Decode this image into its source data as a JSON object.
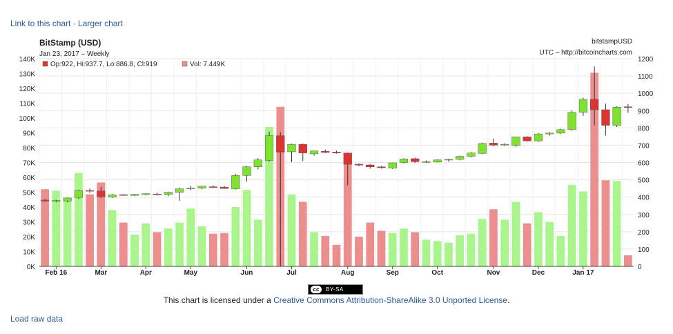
{
  "links": {
    "link_to_chart": "Link to this chart",
    "separator": " · ",
    "larger_chart": "Larger chart",
    "load_raw": "Load raw data"
  },
  "header": {
    "title": "BitStamp (USD)",
    "subtitle": "Jan 23, 2017 – Weekly",
    "symbol": "bitstampUSD",
    "source": "UTC – http://bitcoincharts.com"
  },
  "legend": {
    "ohlc": "Op:922, Hi:937.7, Lo:886.8, Cl:919",
    "vol": "Vol: 7.449K"
  },
  "license": {
    "prefix": "This chart is licensed under a ",
    "link": "Creative Commons Attribution-ShareAlike 3.0 Unported License",
    "suffix": "."
  },
  "badge": {
    "cc": "cc",
    "text": "BY-SA"
  },
  "chart_data": {
    "type": "candlestick",
    "colors": {
      "up_candle": "#7ee32f",
      "down_candle": "#dd3333",
      "up_volume": "#a9f58c",
      "down_volume": "#ec8e8e"
    },
    "price_axis": {
      "side": "right",
      "range": [
        0,
        1200
      ],
      "ticks": [
        0,
        100,
        200,
        300,
        400,
        500,
        600,
        700,
        800,
        900,
        1000,
        1100,
        1200
      ]
    },
    "volume_axis": {
      "side": "left",
      "range": [
        0,
        140000
      ],
      "ticks": [
        "0K",
        "10K",
        "20K",
        "30K",
        "40K",
        "50K",
        "60K",
        "70K",
        "80K",
        "90K",
        "100K",
        "110K",
        "120K",
        "130K",
        "140K"
      ]
    },
    "x_labels": [
      {
        "label": "Feb 16",
        "index": 1
      },
      {
        "label": "Mar",
        "index": 5
      },
      {
        "label": "Apr",
        "index": 9
      },
      {
        "label": "May",
        "index": 13
      },
      {
        "label": "Jun",
        "index": 18
      },
      {
        "label": "Jul",
        "index": 22
      },
      {
        "label": "Aug",
        "index": 27
      },
      {
        "label": "Sep",
        "index": 31
      },
      {
        "label": "Oct",
        "index": 35
      },
      {
        "label": "Nov",
        "index": 40
      },
      {
        "label": "Dec",
        "index": 44
      },
      {
        "label": "Jan 17",
        "index": 48
      }
    ],
    "candles": [
      {
        "o": 383,
        "h": 390,
        "l": 372,
        "c": 378,
        "v": 52000
      },
      {
        "o": 378,
        "h": 385,
        "l": 370,
        "c": 380,
        "v": 51000
      },
      {
        "o": 378,
        "h": 398,
        "l": 370,
        "c": 395,
        "v": 45000
      },
      {
        "o": 398,
        "h": 443,
        "l": 390,
        "c": 438,
        "v": 63000
      },
      {
        "o": 438,
        "h": 450,
        "l": 425,
        "c": 435,
        "v": 48500
      },
      {
        "o": 435,
        "h": 458,
        "l": 395,
        "c": 402,
        "v": 56500
      },
      {
        "o": 400,
        "h": 418,
        "l": 396,
        "c": 414,
        "v": 38000
      },
      {
        "o": 414,
        "h": 418,
        "l": 408,
        "c": 412,
        "v": 29500
      },
      {
        "o": 410,
        "h": 418,
        "l": 406,
        "c": 416,
        "v": 21500
      },
      {
        "o": 415,
        "h": 422,
        "l": 410,
        "c": 420,
        "v": 29000
      },
      {
        "o": 418,
        "h": 426,
        "l": 410,
        "c": 415,
        "v": 23000
      },
      {
        "o": 416,
        "h": 432,
        "l": 405,
        "c": 428,
        "v": 25500
      },
      {
        "o": 428,
        "h": 455,
        "l": 378,
        "c": 448,
        "v": 29500
      },
      {
        "o": 448,
        "h": 465,
        "l": 440,
        "c": 452,
        "v": 39000
      },
      {
        "o": 452,
        "h": 465,
        "l": 445,
        "c": 463,
        "v": 27000
      },
      {
        "o": 460,
        "h": 468,
        "l": 452,
        "c": 456,
        "v": 22000
      },
      {
        "o": 458,
        "h": 465,
        "l": 448,
        "c": 450,
        "v": 22500
      },
      {
        "o": 448,
        "h": 535,
        "l": 443,
        "c": 525,
        "v": 40000
      },
      {
        "o": 525,
        "h": 580,
        "l": 490,
        "c": 575,
        "v": 51500
      },
      {
        "o": 575,
        "h": 625,
        "l": 560,
        "c": 615,
        "v": 31500
      },
      {
        "o": 612,
        "h": 778,
        "l": 605,
        "c": 755,
        "v": 94000
      },
      {
        "o": 755,
        "h": 775,
        "l": 0,
        "c": 660,
        "v": 107500
      },
      {
        "o": 662,
        "h": 710,
        "l": 602,
        "c": 705,
        "v": 48500
      },
      {
        "o": 705,
        "h": 710,
        "l": 608,
        "c": 655,
        "v": 43500
      },
      {
        "o": 650,
        "h": 668,
        "l": 640,
        "c": 667,
        "v": 23000
      },
      {
        "o": 665,
        "h": 675,
        "l": 655,
        "c": 658,
        "v": 20500
      },
      {
        "o": 660,
        "h": 668,
        "l": 652,
        "c": 655,
        "v": 14500
      },
      {
        "o": 655,
        "h": 658,
        "l": 468,
        "c": 590,
        "v": 71500
      },
      {
        "o": 590,
        "h": 595,
        "l": 578,
        "c": 585,
        "v": 20000
      },
      {
        "o": 586,
        "h": 590,
        "l": 565,
        "c": 575,
        "v": 29500
      },
      {
        "o": 575,
        "h": 580,
        "l": 565,
        "c": 570,
        "v": 24000
      },
      {
        "o": 568,
        "h": 600,
        "l": 563,
        "c": 598,
        "v": 22500
      },
      {
        "o": 600,
        "h": 625,
        "l": 595,
        "c": 620,
        "v": 25500
      },
      {
        "o": 622,
        "h": 628,
        "l": 598,
        "c": 605,
        "v": 23000
      },
      {
        "o": 605,
        "h": 612,
        "l": 598,
        "c": 605,
        "v": 18000
      },
      {
        "o": 603,
        "h": 618,
        "l": 600,
        "c": 615,
        "v": 17000
      },
      {
        "o": 615,
        "h": 622,
        "l": 605,
        "c": 618,
        "v": 16000
      },
      {
        "o": 618,
        "h": 640,
        "l": 612,
        "c": 635,
        "v": 21000
      },
      {
        "o": 636,
        "h": 660,
        "l": 630,
        "c": 655,
        "v": 22000
      },
      {
        "o": 653,
        "h": 715,
        "l": 648,
        "c": 710,
        "v": 32000
      },
      {
        "o": 712,
        "h": 738,
        "l": 695,
        "c": 700,
        "v": 38500
      },
      {
        "o": 702,
        "h": 712,
        "l": 695,
        "c": 705,
        "v": 31500
      },
      {
        "o": 698,
        "h": 748,
        "l": 690,
        "c": 748,
        "v": 43500
      },
      {
        "o": 748,
        "h": 752,
        "l": 720,
        "c": 725,
        "v": 29000
      },
      {
        "o": 725,
        "h": 770,
        "l": 720,
        "c": 765,
        "v": 36500
      },
      {
        "o": 765,
        "h": 775,
        "l": 755,
        "c": 770,
        "v": 30000
      },
      {
        "o": 770,
        "h": 795,
        "l": 765,
        "c": 790,
        "v": 20500
      },
      {
        "o": 790,
        "h": 900,
        "l": 785,
        "c": 890,
        "v": 55000
      },
      {
        "o": 890,
        "h": 975,
        "l": 870,
        "c": 965,
        "v": 50500
      },
      {
        "o": 965,
        "h": 1155,
        "l": 815,
        "c": 905,
        "v": 130500
      },
      {
        "o": 905,
        "h": 940,
        "l": 755,
        "c": 815,
        "v": 58000
      },
      {
        "o": 815,
        "h": 925,
        "l": 805,
        "c": 920,
        "v": 57500
      },
      {
        "o": 922,
        "h": 937.7,
        "l": 886.8,
        "c": 919,
        "v": 7449
      }
    ]
  }
}
